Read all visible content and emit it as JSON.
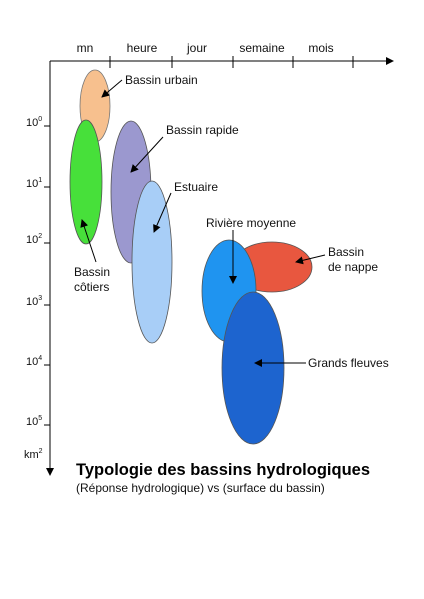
{
  "time_axis": {
    "labels": [
      "mn",
      "heure",
      "jour",
      "semaine",
      "mois"
    ]
  },
  "area_axis": {
    "labels": [
      {
        "base": "10",
        "exp": "0"
      },
      {
        "base": "10",
        "exp": "1"
      },
      {
        "base": "10",
        "exp": "2"
      },
      {
        "base": "10",
        "exp": "3"
      },
      {
        "base": "10",
        "exp": "4"
      },
      {
        "base": "10",
        "exp": "5"
      }
    ],
    "unit_base": "km",
    "unit_exp": "2"
  },
  "basins": [
    {
      "id": "urbain",
      "lines": [
        "Bassin urbain"
      ],
      "color": "#f7c08e"
    },
    {
      "id": "cotiers",
      "lines": [
        "Bassin",
        "côtiers"
      ],
      "color": "#47e03a"
    },
    {
      "id": "rapide",
      "lines": [
        "Bassin rapide"
      ],
      "color": "#9b98cf"
    },
    {
      "id": "estuaire",
      "lines": [
        "Estuaire"
      ],
      "color": "#a8cef7"
    },
    {
      "id": "moyenne",
      "lines": [
        "Rivière moyenne"
      ],
      "color": "#1f94f0"
    },
    {
      "id": "nappe",
      "lines": [
        "Bassin",
        "de nappe"
      ],
      "color": "#e8573f"
    },
    {
      "id": "fleuves",
      "lines": [
        "Grands fleuves"
      ],
      "color": "#1d64cf"
    }
  ],
  "title": "Typologie des bassins hydrologiques",
  "subtitle": "(Réponse hydrologique) vs (surface du bassin)"
}
